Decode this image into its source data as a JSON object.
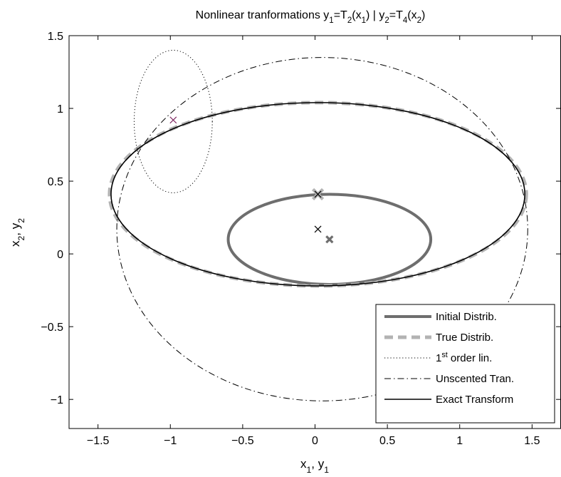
{
  "chart_data": {
    "type": "line",
    "title": {
      "runs": [
        {
          "t": "Nonlinear tranformations y"
        },
        {
          "t": "1",
          "sub": true
        },
        {
          "t": "=T"
        },
        {
          "t": "2",
          "sub": true
        },
        {
          "t": "(x"
        },
        {
          "t": "1",
          "sub": true
        },
        {
          "t": ") | y"
        },
        {
          "t": "2",
          "sub": true
        },
        {
          "t": "=T"
        },
        {
          "t": "4",
          "sub": true
        },
        {
          "t": "(x"
        },
        {
          "t": "2",
          "sub": true
        },
        {
          "t": ")"
        }
      ]
    },
    "xlabel": {
      "runs": [
        {
          "t": "x"
        },
        {
          "t": "1",
          "sub": true
        },
        {
          "t": ", y"
        },
        {
          "t": "1",
          "sub": true
        }
      ]
    },
    "ylabel": {
      "runs": [
        {
          "t": "x"
        },
        {
          "t": "2",
          "sub": true
        },
        {
          "t": ", y"
        },
        {
          "t": "2",
          "sub": true
        }
      ]
    },
    "xlim": [
      -1.7,
      1.7
    ],
    "ylim": [
      -1.2,
      1.5
    ],
    "xticks": [
      -1.5,
      -1,
      -0.5,
      0,
      0.5,
      1,
      1.5
    ],
    "yticks": [
      -1,
      -0.5,
      0,
      0.5,
      1,
      1.5
    ],
    "xtick_labels": [
      "−1.5",
      "−1",
      "−0.5",
      "0",
      "0.5",
      "1",
      "1.5"
    ],
    "ytick_labels": [
      "−1",
      "−0.5",
      "0",
      "0.5",
      "1",
      "1.5"
    ],
    "grid": false,
    "legend_position": "bottom-right",
    "series": [
      {
        "name": "Initial Distrib.",
        "color": "#6e6e6e",
        "style": "solid-thick",
        "shape": "ellipse",
        "center": [
          0.1,
          0.1
        ],
        "radii": [
          0.7,
          0.31
        ],
        "mean_marker": {
          "x": 0.1,
          "y": 0.1,
          "symbol": "x-bold"
        }
      },
      {
        "name": "True Distrib.",
        "color": "#b3b3b3",
        "style": "dashed-thick",
        "shape": "ellipse",
        "center": [
          0.02,
          0.41
        ],
        "radii": [
          1.44,
          0.63
        ],
        "mean_marker": {
          "x": 0.02,
          "y": 0.41,
          "symbol": "x-large"
        }
      },
      {
        "name": "1st order lin.",
        "label_runs": [
          {
            "t": "1"
          },
          {
            "t": "st",
            "sup": true
          },
          {
            "t": " order lin."
          }
        ],
        "color": "#000000",
        "style": "dotted",
        "shape": "ellipse",
        "center": [
          -0.98,
          0.91
        ],
        "radii": [
          0.27,
          0.49
        ],
        "mean_marker": {
          "x": -0.98,
          "y": 0.92,
          "symbol": "x",
          "color": "#7a1f5c"
        }
      },
      {
        "name": "Unscented Tran.",
        "color": "#000000",
        "style": "dashdot",
        "shape": "ellipse",
        "center": [
          0.05,
          0.17
        ],
        "radii": [
          1.42,
          1.18
        ],
        "mean_marker": {
          "x": 0.02,
          "y": 0.17,
          "symbol": "x"
        }
      },
      {
        "name": "Exact Transform",
        "color": "#000000",
        "style": "solid",
        "shape": "ellipse",
        "center": [
          0.02,
          0.41
        ],
        "radii": [
          1.43,
          0.63
        ],
        "mean_marker": {
          "x": 0.02,
          "y": 0.41,
          "symbol": "x"
        }
      }
    ]
  }
}
